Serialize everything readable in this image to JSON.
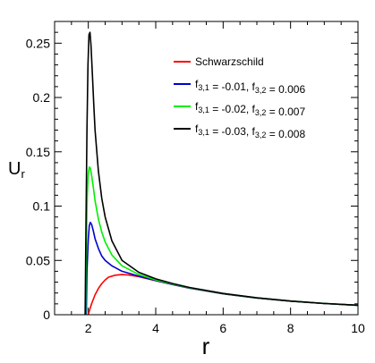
{
  "chart_data": {
    "type": "line",
    "xlabel": "r",
    "ylabel": "U",
    "ylabel_sub": "r",
    "xlim": [
      1,
      10
    ],
    "ylim": [
      0,
      0.27
    ],
    "xticks": [
      2,
      4,
      6,
      8,
      10
    ],
    "yticks": [
      0,
      0.05,
      0.1,
      0.15,
      0.2,
      0.25
    ],
    "ytick_labels": [
      "0",
      "0.05",
      "0.1",
      "0.15",
      "0.2",
      "0.25"
    ],
    "grid": false,
    "legend_position": "top-right",
    "series": [
      {
        "name": "Schwarzschild",
        "legend": [
          {
            "t": "Schwarzschild"
          }
        ],
        "color": "#ff0000",
        "x": [
          1.95,
          2.0,
          2.05,
          2.1,
          2.2,
          2.3,
          2.4,
          2.5,
          2.6,
          2.8,
          3.0,
          3.2,
          3.5,
          4.0,
          4.5,
          5.0,
          6.0,
          7.0,
          8.0,
          9.0,
          10.0
        ],
        "y": [
          -0.02,
          0.0,
          0.0055,
          0.0103,
          0.0183,
          0.0242,
          0.0286,
          0.032,
          0.0346,
          0.0364,
          0.037,
          0.0366,
          0.035,
          0.0313,
          0.0278,
          0.0245,
          0.0193,
          0.0154,
          0.0125,
          0.0103,
          0.0087
        ]
      },
      {
        "name": "f3,1 = -0.01, f3,2 = 0.006",
        "legend": [
          {
            "t": "f"
          },
          {
            "t": "3,1",
            "sub": true
          },
          {
            "t": " = -0.01, f"
          },
          {
            "t": "3,2",
            "sub": true
          },
          {
            "t": " = 0.006"
          }
        ],
        "color": "#0000cc",
        "x": [
          1.93,
          1.96,
          2.0,
          2.03,
          2.06,
          2.1,
          2.15,
          2.2,
          2.3,
          2.4,
          2.5,
          2.7,
          3.0,
          3.5,
          4.0,
          4.5,
          5.0,
          6.0,
          7.0,
          8.0,
          9.0,
          10.0
        ],
        "y": [
          -0.02,
          0.04,
          0.07,
          0.082,
          0.085,
          0.083,
          0.077,
          0.07,
          0.061,
          0.054,
          0.05,
          0.045,
          0.04,
          0.0355,
          0.0315,
          0.0278,
          0.0245,
          0.0193,
          0.0154,
          0.0125,
          0.0103,
          0.0087
        ]
      },
      {
        "name": "f3,1 = -0.02, f3,2 = 0.007",
        "legend": [
          {
            "t": "f"
          },
          {
            "t": "3,1",
            "sub": true
          },
          {
            "t": " = -0.02, f"
          },
          {
            "t": "3,2",
            "sub": true
          },
          {
            "t": " = 0.007"
          }
        ],
        "color": "#00ee00",
        "x": [
          1.91,
          1.94,
          1.97,
          2.0,
          2.03,
          2.06,
          2.1,
          2.15,
          2.2,
          2.3,
          2.4,
          2.5,
          2.7,
          3.0,
          3.5,
          4.0,
          4.5,
          5.0,
          6.0,
          7.0,
          8.0,
          9.0,
          10.0
        ],
        "y": [
          -0.02,
          0.06,
          0.11,
          0.13,
          0.136,
          0.135,
          0.128,
          0.117,
          0.105,
          0.088,
          0.076,
          0.067,
          0.055,
          0.045,
          0.037,
          0.032,
          0.0282,
          0.0248,
          0.0195,
          0.0155,
          0.0126,
          0.0104,
          0.0087
        ]
      },
      {
        "name": "f3,1 = -0.03, f3,2 = 0.008",
        "legend": [
          {
            "t": "f"
          },
          {
            "t": "3,1",
            "sub": true
          },
          {
            "t": " = -0.03, f"
          },
          {
            "t": "3,2",
            "sub": true
          },
          {
            "t": " = 0.008"
          }
        ],
        "color": "#000000",
        "x": [
          1.9,
          1.93,
          1.96,
          1.99,
          2.02,
          2.05,
          2.08,
          2.12,
          2.16,
          2.2,
          2.3,
          2.4,
          2.5,
          2.7,
          3.0,
          3.5,
          4.0,
          4.5,
          5.0,
          6.0,
          7.0,
          8.0,
          9.0,
          10.0
        ],
        "y": [
          -0.02,
          0.08,
          0.17,
          0.23,
          0.258,
          0.26,
          0.248,
          0.222,
          0.195,
          0.17,
          0.132,
          0.107,
          0.09,
          0.068,
          0.05,
          0.039,
          0.033,
          0.0287,
          0.0251,
          0.0196,
          0.0156,
          0.0126,
          0.0104,
          0.0087
        ]
      }
    ]
  }
}
